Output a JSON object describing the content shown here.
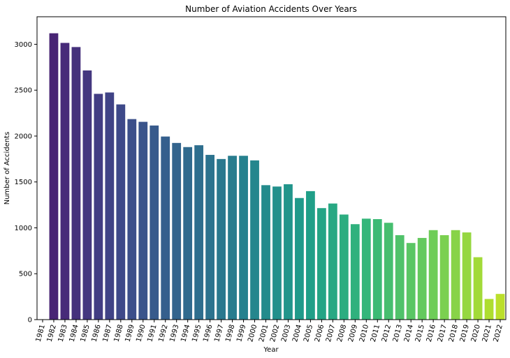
{
  "chart_data": {
    "type": "bar",
    "title": "Number of Aviation Accidents Over Years",
    "xlabel": "Year",
    "ylabel": "Number of Accidents",
    "ylim": [
      0,
      3300
    ],
    "yticks": [
      0,
      500,
      1000,
      1500,
      2000,
      2500,
      3000
    ],
    "grid": false,
    "legend": "none",
    "palette": "viridis",
    "categories": [
      "1981",
      "1982",
      "1983",
      "1984",
      "1985",
      "1986",
      "1987",
      "1988",
      "1989",
      "1990",
      "1991",
      "1992",
      "1993",
      "1994",
      "1995",
      "1996",
      "1997",
      "1998",
      "1999",
      "2000",
      "2001",
      "2002",
      "2003",
      "2004",
      "2005",
      "2006",
      "2007",
      "2008",
      "2009",
      "2010",
      "2011",
      "2012",
      "2013",
      "2014",
      "2015",
      "2016",
      "2017",
      "2018",
      "2019",
      "2020",
      "2021",
      "2022"
    ],
    "values": [
      1,
      3120,
      3015,
      2970,
      2715,
      2460,
      2475,
      2345,
      2185,
      2155,
      2115,
      1995,
      1925,
      1880,
      1900,
      1795,
      1750,
      1785,
      1785,
      1735,
      1465,
      1450,
      1475,
      1325,
      1400,
      1215,
      1265,
      1145,
      1040,
      1100,
      1095,
      1055,
      920,
      835,
      890,
      975,
      920,
      975,
      950,
      680,
      225,
      280
    ]
  }
}
